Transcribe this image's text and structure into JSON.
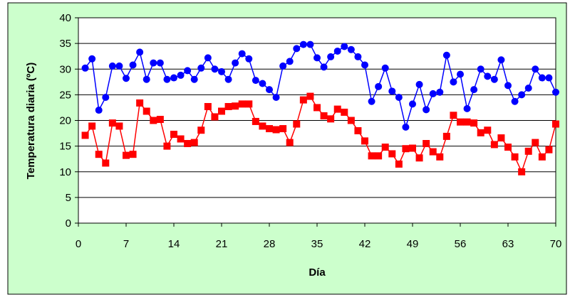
{
  "chart_data": {
    "type": "line",
    "x_label": "Día",
    "y_label": "Temperatura diaria (ºC)",
    "x": [
      1,
      2,
      3,
      4,
      5,
      6,
      7,
      8,
      9,
      10,
      11,
      12,
      13,
      14,
      15,
      16,
      17,
      18,
      19,
      20,
      21,
      22,
      23,
      24,
      25,
      26,
      27,
      28,
      29,
      30,
      31,
      32,
      33,
      34,
      35,
      36,
      37,
      38,
      39,
      40,
      41,
      42,
      43,
      44,
      45,
      46,
      47,
      48,
      49,
      50,
      51,
      52,
      53,
      54,
      55,
      56,
      57,
      58,
      59,
      60,
      61,
      62,
      63,
      64,
      65,
      66,
      67,
      68,
      69,
      70
    ],
    "series": [
      {
        "color": "#0000ff",
        "marker": "circle",
        "values": [
          30.2,
          32,
          22,
          24.5,
          30.6,
          30.6,
          28.2,
          30.8,
          33.3,
          28,
          31.2,
          31.2,
          28,
          28.3,
          28.8,
          29.7,
          28,
          30.2,
          32.2,
          30,
          29.5,
          28,
          31.2,
          33,
          32,
          27.8,
          27.2,
          26,
          24.5,
          30.6,
          31.5,
          34,
          34.8,
          34.8,
          32.2,
          30.4,
          32.4,
          33.5,
          34.4,
          33.8,
          32.4,
          30.8,
          23.7,
          26.6,
          30.2,
          25.7,
          24.5,
          18.7,
          23.2,
          27,
          22.1,
          25.2,
          25.5,
          32.7,
          27.5,
          29,
          22.3,
          26,
          30,
          28.6,
          28,
          31.8,
          26.8,
          23.7,
          25,
          26.3,
          30,
          28.3,
          28.3,
          25.5
        ]
      },
      {
        "color": "#ff0000",
        "marker": "square",
        "values": [
          17.1,
          18.9,
          13.4,
          11.7,
          19.5,
          18.9,
          13.2,
          13.4,
          23.4,
          21.8,
          20,
          20.2,
          15,
          17.3,
          16.4,
          15.5,
          15.7,
          18.1,
          22.7,
          20.7,
          21.8,
          22.7,
          22.8,
          23.2,
          23.2,
          19.8,
          18.9,
          18.4,
          18.2,
          18.4,
          15.7,
          19.3,
          24,
          24.7,
          22.5,
          20.9,
          20.3,
          22.2,
          21.6,
          20,
          18,
          16,
          13.1,
          13.1,
          14.8,
          13.5,
          11.5,
          14.5,
          14.6,
          12.7,
          15.5,
          13.9,
          12.9,
          16.9,
          21,
          19.7,
          19.7,
          19.5,
          17.6,
          18.1,
          15.3,
          16.6,
          14.8,
          12.9,
          10,
          14,
          15.7,
          12.9,
          14.3,
          19.3
        ]
      }
    ],
    "xlim": [
      0,
      70
    ],
    "xticks": [
      0,
      7,
      14,
      21,
      28,
      35,
      42,
      49,
      56,
      63,
      70
    ],
    "ylim": [
      0,
      40
    ],
    "yticks": [
      0,
      5,
      10,
      15,
      20,
      25,
      30,
      35,
      40
    ],
    "grid": true,
    "background": "#ccffcc"
  }
}
